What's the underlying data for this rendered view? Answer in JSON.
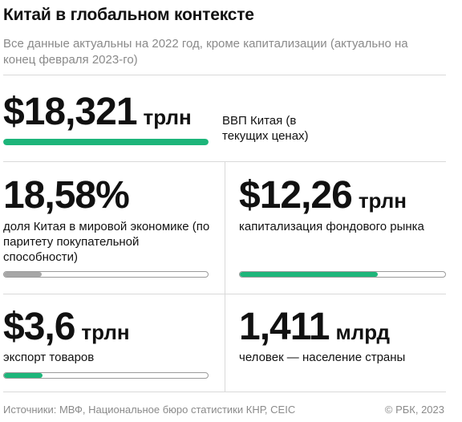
{
  "title": "Китай в глобальном контексте",
  "subtitle": "Все данные актуальны на 2022 год, кроме капитализации (актуально на конец февраля 2023-го)",
  "chart_data": {
    "type": "table",
    "items": [
      {
        "value": "$18,321",
        "unit": "трлн",
        "label": "ВВП Китая (в текущих ценах)",
        "fill": 1.0,
        "color": "#1db57a"
      },
      {
        "value": "18,58%",
        "unit": "",
        "label": "доля Китая в мировой экономике (по паритету покупательной способности)",
        "fill": 0.1858,
        "color": "#a6a6a6"
      },
      {
        "value": "$12,26",
        "unit": "трлн",
        "label": "капитализация фондового рынка",
        "fill": 0.67,
        "color": "#1db57a"
      },
      {
        "value": "$3,6",
        "unit": "трлн",
        "label": "экспорт товаров",
        "fill": 0.19,
        "color": "#1db57a"
      },
      {
        "value": "1,411",
        "unit": "млрд",
        "label": "человек — население страны",
        "fill": null,
        "color": null
      }
    ]
  },
  "footer": {
    "sources": "Источники: МВФ, Национальное бюро статистики КНР, CEIC",
    "copyright": "© РБК, 2023"
  }
}
